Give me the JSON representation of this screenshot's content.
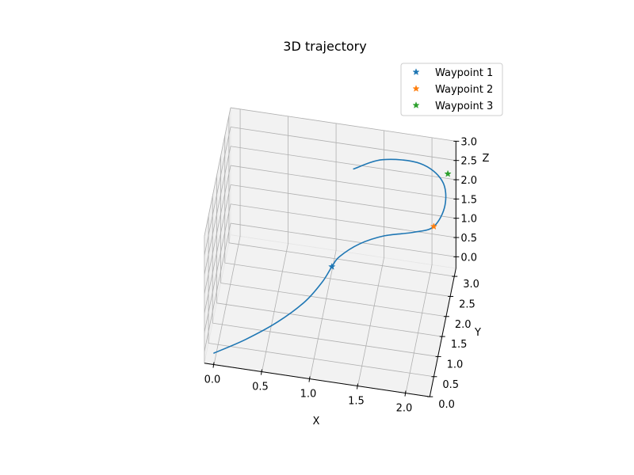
{
  "chart_data": {
    "type": "line",
    "projection": "3d",
    "title": "3D trajectory",
    "xlabel": "X",
    "ylabel": "Y",
    "zlabel": "Z",
    "xlim": [
      -0.1,
      2.25
    ],
    "ylim": [
      0.0,
      3.2
    ],
    "zlim": [
      -0.3,
      3.0
    ],
    "xticks": [
      "0.0",
      "0.5",
      "1.0",
      "1.5",
      "2.0"
    ],
    "yticks": [
      "0.0",
      "0.5",
      "1.0",
      "1.5",
      "2.0",
      "2.5",
      "3.0"
    ],
    "zticks": [
      "0.0",
      "0.5",
      "1.0",
      "1.5",
      "2.0",
      "2.5",
      "3.0"
    ],
    "grid": true,
    "legend_position": "top-right",
    "line_color": "#1f77b4",
    "series": [
      {
        "x": [
          0.0,
          0.3,
          0.6,
          0.85,
          1.0,
          1.08,
          1.15,
          1.35,
          1.6,
          1.9,
          2.1,
          2.2,
          2.15,
          1.9,
          1.5,
          1.2
        ],
        "y": [
          0.0,
          0.35,
          0.75,
          1.15,
          1.5,
          1.75,
          1.85,
          1.95,
          2.05,
          2.15,
          2.25,
          2.45,
          2.7,
          2.95,
          3.05,
          3.0
        ],
        "z": [
          0.0,
          0.1,
          0.25,
          0.45,
          0.65,
          0.82,
          1.0,
          1.3,
          1.5,
          1.6,
          1.72,
          2.1,
          2.45,
          2.55,
          2.4,
          2.1
        ]
      }
    ],
    "waypoints": [
      {
        "name": "Waypoint 1",
        "x": 1.08,
        "y": 1.75,
        "z": 0.82,
        "color": "#1f77b4",
        "marker": "star"
      },
      {
        "name": "Waypoint 2",
        "x": 2.1,
        "y": 2.25,
        "z": 1.72,
        "color": "#ff7f0e",
        "marker": "star"
      },
      {
        "name": "Waypoint 3",
        "x": 2.2,
        "y": 2.8,
        "z": 2.55,
        "color": "#2ca02c",
        "marker": "star"
      }
    ]
  }
}
